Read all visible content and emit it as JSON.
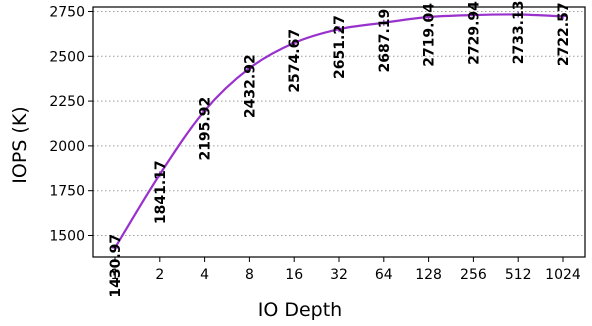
{
  "chart_data": {
    "type": "line",
    "x_categories": [
      "1",
      "2",
      "4",
      "8",
      "16",
      "32",
      "64",
      "128",
      "256",
      "512",
      "1024"
    ],
    "series": [
      {
        "values": [
          1430.97,
          1841.17,
          2195.92,
          2432.92,
          2574.67,
          2651.27,
          2687.19,
          2719.04,
          2729.94,
          2733.13,
          2722.57
        ],
        "value_labels": [
          "1430.97",
          "1841.17",
          "2195.92",
          "2432.92",
          "2574.67",
          "2651.27",
          "2687.19",
          "2719.04",
          "2729.94",
          "2733.13",
          "2722.57"
        ],
        "color": "#9932CC",
        "marker": "plus",
        "smooth": true
      }
    ],
    "xlabel": "IO Depth",
    "ylabel": "IOPS (K)",
    "ylim": [
      1380,
      2775
    ],
    "yticks": [
      1500,
      1750,
      2000,
      2250,
      2500,
      2750
    ],
    "ytick_labels": [
      "1500",
      "1750",
      "2000",
      "2250",
      "2500",
      "2750"
    ],
    "grid": "horizontal-dotted",
    "grid_color": "#9e9e9e",
    "data_labels_rotation": "vertical"
  }
}
